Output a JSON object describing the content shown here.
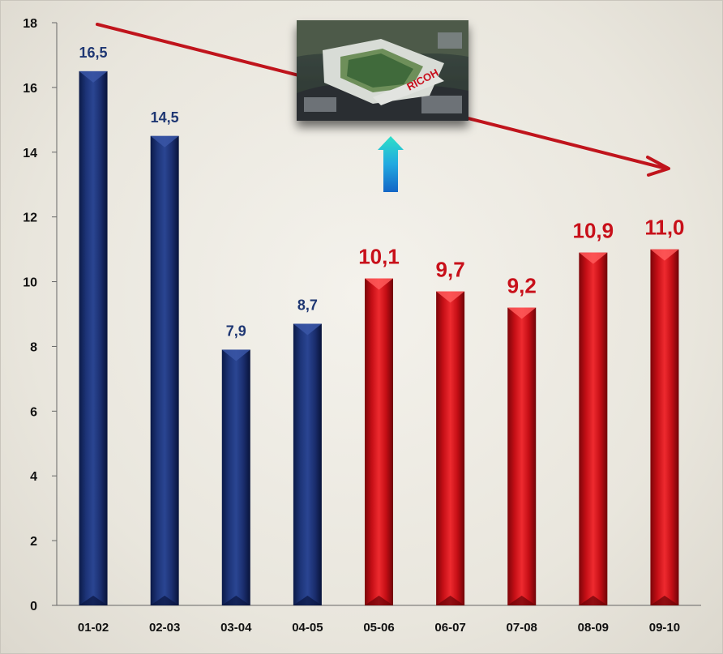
{
  "chart_data": {
    "type": "bar",
    "categories": [
      "01-02",
      "02-03",
      "03-04",
      "04-05",
      "05-06",
      "06-07",
      "07-08",
      "08-09",
      "09-10"
    ],
    "values": [
      16.5,
      14.5,
      7.9,
      8.7,
      10.1,
      9.7,
      9.2,
      10.9,
      11.0
    ],
    "data_labels": [
      "16,5",
      "14,5",
      "7,9",
      "8,7",
      "10,1",
      "9,7",
      "9,2",
      "10,9",
      "11,0"
    ],
    "bar_colors": [
      "#1c2f6e",
      "#1c2f6e",
      "#1c2f6e",
      "#1c2f6e",
      "#cf1015",
      "#cf1015",
      "#cf1015",
      "#cf1015",
      "#cf1015"
    ],
    "label_colors": [
      "#1f3773",
      "#1f3773",
      "#1f3773",
      "#1f3773",
      "#c8101a",
      "#c8101a",
      "#c8101a",
      "#c8101a",
      "#c8101a"
    ],
    "y_ticks": [
      "0",
      "2",
      "4",
      "6",
      "8",
      "10",
      "12",
      "14",
      "16",
      "18"
    ],
    "ylim": [
      0,
      18
    ],
    "title": "",
    "xlabel": "",
    "ylabel": "",
    "grid": false,
    "legend": "none"
  },
  "annotations": {
    "stadium_photo": "aerial-stadium-photo",
    "stadium_sign": "RICOH",
    "trend_arrow_color": "#c0141c",
    "up_arrow_color": "#1aa6d8"
  }
}
